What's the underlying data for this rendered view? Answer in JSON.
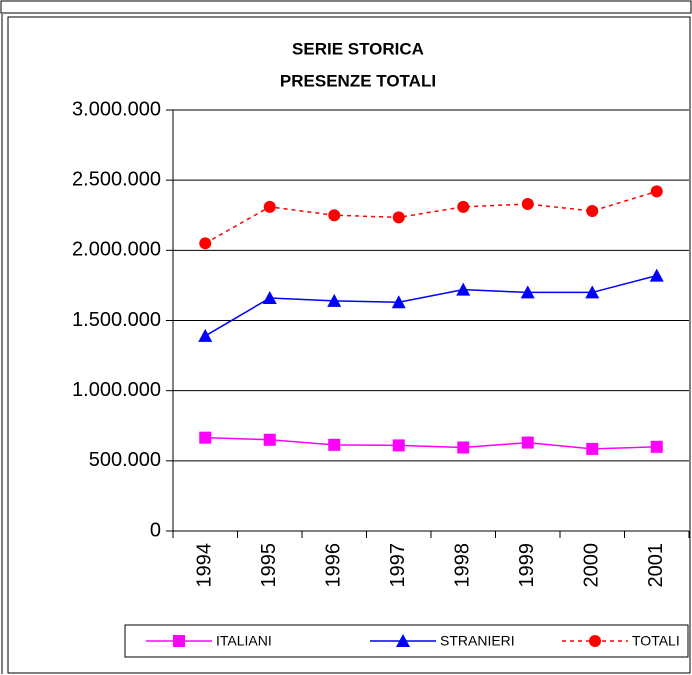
{
  "chart_data": {
    "type": "line",
    "title": "SERIE STORICA",
    "subtitle": "PRESENZE TOTALI",
    "categories": [
      "1994",
      "1995",
      "1996",
      "1997",
      "1998",
      "1999",
      "2000",
      "2001"
    ],
    "series": [
      {
        "name": "ITALIANI",
        "color": "#ff00ff",
        "marker": "square",
        "dash": false,
        "values": [
          665000,
          650000,
          614000,
          610000,
          595000,
          630000,
          585000,
          600000
        ]
      },
      {
        "name": "STRANIERI",
        "color": "#0000ff",
        "marker": "triangle",
        "dash": false,
        "values": [
          1390000,
          1660000,
          1640000,
          1630000,
          1720000,
          1700000,
          1700000,
          1820000
        ]
      },
      {
        "name": "TOTALI",
        "color": "#ff0000",
        "marker": "circle",
        "dash": true,
        "values": [
          2050000,
          2310000,
          2250000,
          2235000,
          2310000,
          2330000,
          2280000,
          2420000
        ]
      }
    ],
    "ylim": [
      0,
      3000000
    ],
    "yticks": [
      0,
      {
        "value": 500000,
        "label": "500.000"
      },
      {
        "value": 1000000,
        "label": "1.000.000"
      },
      {
        "value": 1500000,
        "label": "1.500.000"
      },
      {
        "value": 2000000,
        "label": "2.000.000"
      },
      {
        "value": 2500000,
        "label": "2.500.000"
      },
      {
        "value": 3000000,
        "label": "3.000.000"
      }
    ],
    "grid": true,
    "legend": "bottom"
  }
}
